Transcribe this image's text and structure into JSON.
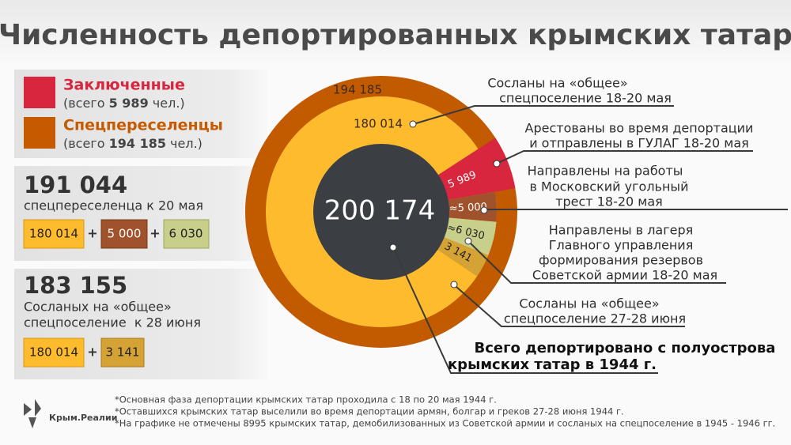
{
  "title": "Численность депортированных крымских татар",
  "legend": [
    {
      "label": "Заключенные",
      "note_prefix": "(всего ",
      "note_value": "5 989",
      "note_suffix": " чел.)"
    },
    {
      "label": "Спецпереселенцы",
      "note_prefix": "(всего ",
      "note_value": "194 185",
      "note_suffix": " чел.)"
    }
  ],
  "summary": [
    {
      "total": "191 044",
      "caption": [
        "спецпереселенца к 20 мая"
      ],
      "parts": [
        "180 014",
        "5 000",
        "6 030"
      ],
      "operators": [
        "+",
        "+"
      ]
    },
    {
      "total": "183 155",
      "caption": [
        "Сосланых на «общее»",
        "спецпоселение  к 28 июня"
      ],
      "parts": [
        "180 014",
        "3 141"
      ],
      "operators": [
        "+"
      ]
    }
  ],
  "donut": {
    "center": "200 174",
    "outer_label": "194 185",
    "inner_label": "180 014",
    "segments": [
      "5 989",
      "≈5 000",
      "≈6 030",
      "3 141"
    ]
  },
  "callouts": [
    [
      "Сосланы на «общее»",
      "спецпоселение 18-20 мая"
    ],
    [
      "Арестованы во время депортации",
      "и отправлены в ГУЛАГ 18-20 мая"
    ],
    [
      "Направлены на работы",
      "в Московский угольный",
      "трест 18-20 мая"
    ],
    [
      "Направлены в лагеря",
      "Главного управления",
      "формирования резервов",
      "Советской армии 18-20 мая"
    ],
    [
      "Сосланы на «общее»",
      "спецпоселение 27-28 июня"
    ]
  ],
  "total_note": [
    "Всего депортировано с полуострова",
    "крымских татар в 1944 г."
  ],
  "footnotes": [
    "*Основная фаза депортации крымских татар проходила с 18 по 20 мая 1944 г.",
    "*Оставшихся крымских татар выселили во время депортации армян, болгар и греков 27-28 июня 1944 г.",
    "*На графике не отмечены 8995 крымских татар, демобилизованных из Советской армии и сосланых на спецпоселение в 1945 - 1946 гг."
  ],
  "logo": "Крым.Реалии"
}
